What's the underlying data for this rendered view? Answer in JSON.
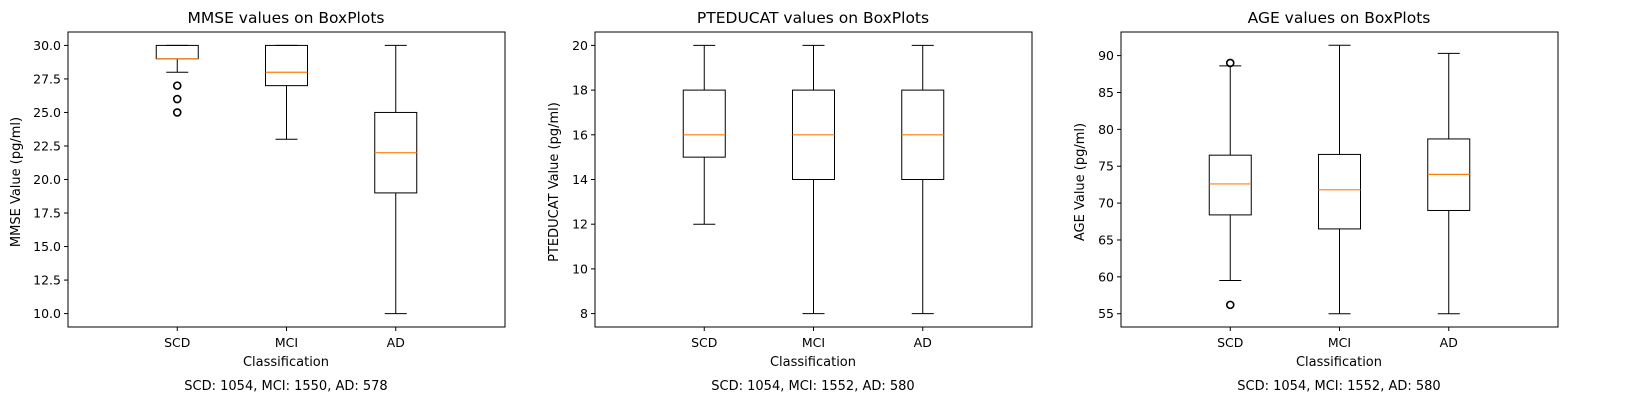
{
  "chart_data": [
    {
      "type": "boxplot",
      "title": "MMSE values on BoxPlots",
      "xlabel": "Classification",
      "ylabel": "MMSE Value (pg/ml)",
      "categories": [
        "SCD",
        "MCI",
        "AD"
      ],
      "yticks": [
        "10.0",
        "12.5",
        "15.0",
        "17.5",
        "20.0",
        "22.5",
        "25.0",
        "27.5",
        "30.0"
      ],
      "ytick_values": [
        10.0,
        12.5,
        15.0,
        17.5,
        20.0,
        22.5,
        25.0,
        27.5,
        30.0
      ],
      "ylim": [
        9.0,
        31.0
      ],
      "boxes": [
        {
          "category": "SCD",
          "whisker_low": 28.0,
          "q1": 29.0,
          "median": 29.0,
          "q3": 30.0,
          "whisker_high": 30.0,
          "outliers": [
            25.0,
            26.0,
            27.0
          ]
        },
        {
          "category": "MCI",
          "whisker_low": 23.0,
          "q1": 27.0,
          "median": 28.0,
          "q3": 30.0,
          "whisker_high": 30.0,
          "outliers": []
        },
        {
          "category": "AD",
          "whisker_low": 10.0,
          "q1": 19.0,
          "median": 22.0,
          "q3": 25.0,
          "whisker_high": 30.0,
          "outliers": []
        }
      ],
      "note": "SCD: 1054, MCI: 1550, AD: 578"
    },
    {
      "type": "boxplot",
      "title": "PTEDUCAT values on BoxPlots",
      "xlabel": "Classification",
      "ylabel": "PTEDUCAT Value (pg/ml)",
      "categories": [
        "SCD",
        "MCI",
        "AD"
      ],
      "yticks": [
        "8",
        "10",
        "12",
        "14",
        "16",
        "18",
        "20"
      ],
      "ytick_values": [
        8,
        10,
        12,
        14,
        16,
        18,
        20
      ],
      "ylim": [
        7.4,
        20.6
      ],
      "boxes": [
        {
          "category": "SCD",
          "whisker_low": 12.0,
          "q1": 15.0,
          "median": 16.0,
          "q3": 18.0,
          "whisker_high": 20.0,
          "outliers": []
        },
        {
          "category": "MCI",
          "whisker_low": 8.0,
          "q1": 14.0,
          "median": 16.0,
          "q3": 18.0,
          "whisker_high": 20.0,
          "outliers": []
        },
        {
          "category": "AD",
          "whisker_low": 8.0,
          "q1": 14.0,
          "median": 16.0,
          "q3": 18.0,
          "whisker_high": 20.0,
          "outliers": []
        }
      ],
      "note": "SCD: 1054, MCI: 1552, AD: 580"
    },
    {
      "type": "boxplot",
      "title": "AGE values on BoxPlots",
      "xlabel": "Classification",
      "ylabel": "AGE Value (pg/ml)",
      "categories": [
        "SCD",
        "MCI",
        "AD"
      ],
      "yticks": [
        "55",
        "60",
        "65",
        "70",
        "75",
        "80",
        "85",
        "90"
      ],
      "ytick_values": [
        55,
        60,
        65,
        70,
        75,
        80,
        85,
        90
      ],
      "ylim": [
        53.2,
        93.2
      ],
      "boxes": [
        {
          "category": "SCD",
          "whisker_low": 59.5,
          "q1": 68.4,
          "median": 72.6,
          "q3": 76.5,
          "whisker_high": 88.6,
          "outliers": [
            56.2,
            89.0
          ]
        },
        {
          "category": "MCI",
          "whisker_low": 55.0,
          "q1": 66.5,
          "median": 71.8,
          "q3": 76.6,
          "whisker_high": 91.4,
          "outliers": []
        },
        {
          "category": "AD",
          "whisker_low": 55.0,
          "q1": 69.0,
          "median": 73.9,
          "q3": 78.7,
          "whisker_high": 90.3,
          "outliers": []
        }
      ],
      "note": "SCD: 1054, MCI: 1552, AD: 580"
    }
  ],
  "colors": {
    "box": "#000000",
    "median": "#ff7f0e",
    "background": "#ffffff"
  }
}
